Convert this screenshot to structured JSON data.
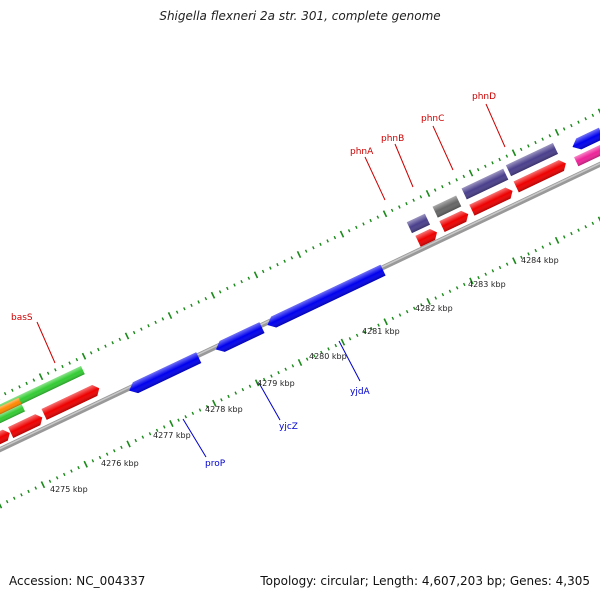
{
  "title": "Shigella flexneri 2a str. 301, complete genome",
  "footer": {
    "accession": "Accession: NC_004337",
    "summary": "Topology: circular; Length: 4,607,203 bp; Genes: 4,305"
  },
  "colors": {
    "backbone": "#888888",
    "tick": "#1a8a1a",
    "forward_label": "#cc0000",
    "reverse_label": "#0000cc",
    "blue": "#0000ee",
    "purple": "#4a3f8c",
    "gray": "#666666",
    "red": "#ee0000",
    "green": "#33cc33",
    "orange": "#ff8800",
    "magenta": "#ee2299"
  },
  "tick_labels": [
    "4275 kbp",
    "4276 kbp",
    "4277 kbp",
    "4278 kbp",
    "4279 kbp",
    "4280 kbp",
    "4281 kbp",
    "4282 kbp",
    "4283 kbp",
    "4284 kbp"
  ],
  "forward_labels": [
    "basS",
    "phnA",
    "phnB",
    "phnC",
    "phnD"
  ],
  "reverse_labels": [
    "proP",
    "yjcZ",
    "yjdA"
  ]
}
